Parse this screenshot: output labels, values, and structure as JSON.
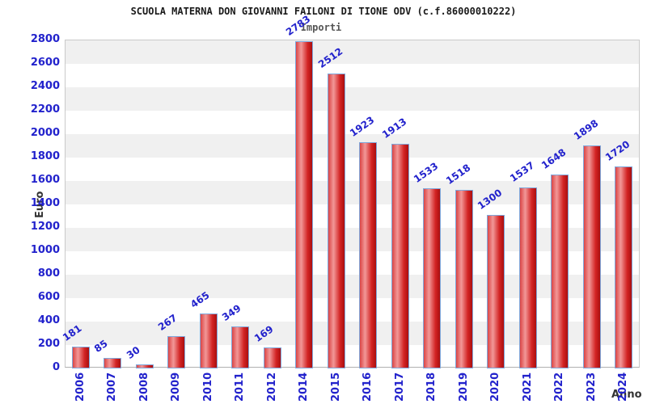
{
  "header": {
    "title": "SCUOLA MATERNA DON GIOVANNI FAILONI DI TIONE ODV (c.f.86000010222)",
    "subtitle": "Importi"
  },
  "chart_data": {
    "type": "bar",
    "title": "SCUOLA MATERNA DON GIOVANNI FAILONI DI TIONE ODV (c.f.86000010222)",
    "subtitle": "Importi",
    "xlabel": "Anno",
    "ylabel": "Euro",
    "categories": [
      "2006",
      "2007",
      "2008",
      "2009",
      "2010",
      "2011",
      "2012",
      "2014",
      "2015",
      "2016",
      "2017",
      "2018",
      "2019",
      "2020",
      "2021",
      "2022",
      "2023",
      "2024"
    ],
    "values": [
      181,
      85,
      30,
      267,
      465,
      349,
      169,
      2783,
      2512,
      1923,
      1913,
      1533,
      1518,
      1300,
      1537,
      1648,
      1898,
      1720
    ],
    "ylim": [
      0,
      2800
    ],
    "ytick_step": 200,
    "legend": "none",
    "grid": "alternating-horizontal-bands",
    "value_labels": "above-bars-rotated",
    "colors": {
      "bar_fill_edge": "#aa0f0f",
      "bar_fill_mid": "#f29898",
      "bar_fill_main": "#d32424",
      "bar_border": "#7fa8dc",
      "tick_label": "#2222cc",
      "band_gray": "#f0f0f0",
      "band_white": "#ffffff",
      "title_color": "#1a1a1a",
      "subtitle_color": "#555555",
      "axis_title_color": "#333333"
    }
  }
}
